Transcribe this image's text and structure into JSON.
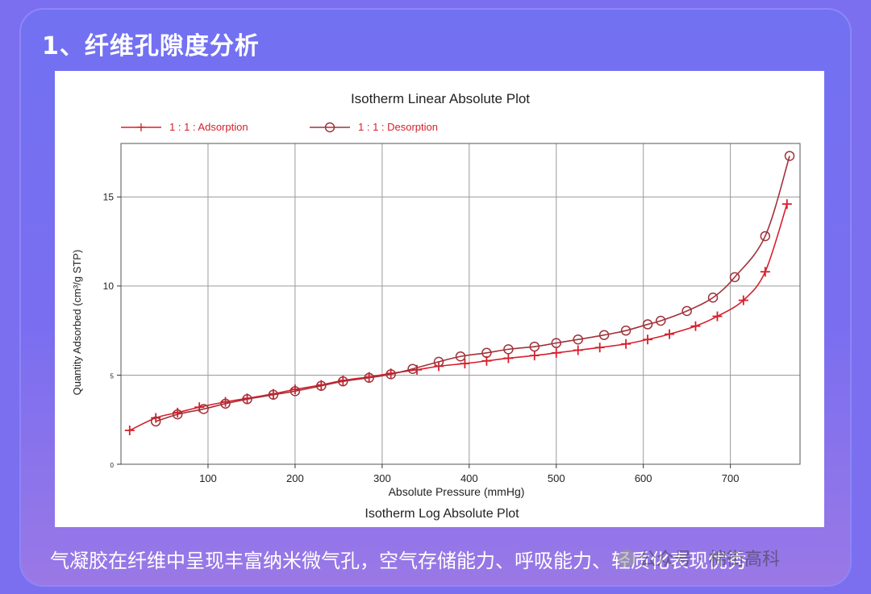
{
  "heading": "1、纤维孔隙度分析",
  "caption": "气凝胶在纤维中呈现丰富纳米微气孔，空气存储能力、呼吸能力、轻质化表现优秀",
  "watermark": "公众号 · 棉街高科",
  "colors": {
    "adsorption": "#d81e2a",
    "desorption": "#a0323a",
    "grid": "#9a9a9a"
  },
  "chart_data": {
    "type": "line",
    "title": "Isotherm Linear Absolute Plot",
    "xlabel": "Absolute Pressure (mmHg)",
    "ylabel": "Quantity Adsorbed (cm³/g STP)",
    "bottom_label": "Isotherm Log Absolute Plot",
    "xlim": [
      0,
      780
    ],
    "ylim": [
      0,
      18
    ],
    "x_ticks": [
      100,
      200,
      300,
      400,
      500,
      600,
      700
    ],
    "y_ticks": [
      0,
      5,
      10,
      15
    ],
    "y_tick_labels": [
      "0",
      "5",
      "10",
      "15"
    ],
    "grid": true,
    "legend_position": "top",
    "series": [
      {
        "name": "1 : 1 : Adsorption",
        "marker": "plus",
        "x": [
          10,
          40,
          65,
          90,
          120,
          145,
          175,
          200,
          230,
          255,
          285,
          310,
          340,
          365,
          395,
          420,
          445,
          475,
          500,
          525,
          550,
          580,
          605,
          630,
          660,
          685,
          715,
          740,
          765
        ],
        "y": [
          1.9,
          2.6,
          2.9,
          3.2,
          3.5,
          3.7,
          3.95,
          4.2,
          4.45,
          4.7,
          4.9,
          5.1,
          5.3,
          5.5,
          5.65,
          5.8,
          5.95,
          6.1,
          6.25,
          6.4,
          6.55,
          6.75,
          7.0,
          7.3,
          7.75,
          8.3,
          9.2,
          10.8,
          14.6
        ]
      },
      {
        "name": "1 : 1 : Desorption",
        "marker": "circle",
        "x": [
          40,
          65,
          95,
          120,
          145,
          175,
          200,
          230,
          255,
          285,
          310,
          335,
          365,
          390,
          420,
          445,
          475,
          500,
          525,
          555,
          580,
          605,
          620,
          650,
          680,
          705,
          740,
          768
        ],
        "y": [
          2.4,
          2.8,
          3.1,
          3.4,
          3.65,
          3.9,
          4.1,
          4.4,
          4.65,
          4.85,
          5.05,
          5.35,
          5.75,
          6.05,
          6.25,
          6.45,
          6.6,
          6.8,
          7.0,
          7.25,
          7.5,
          7.85,
          8.05,
          8.6,
          9.35,
          10.5,
          12.8,
          17.3
        ]
      }
    ]
  }
}
